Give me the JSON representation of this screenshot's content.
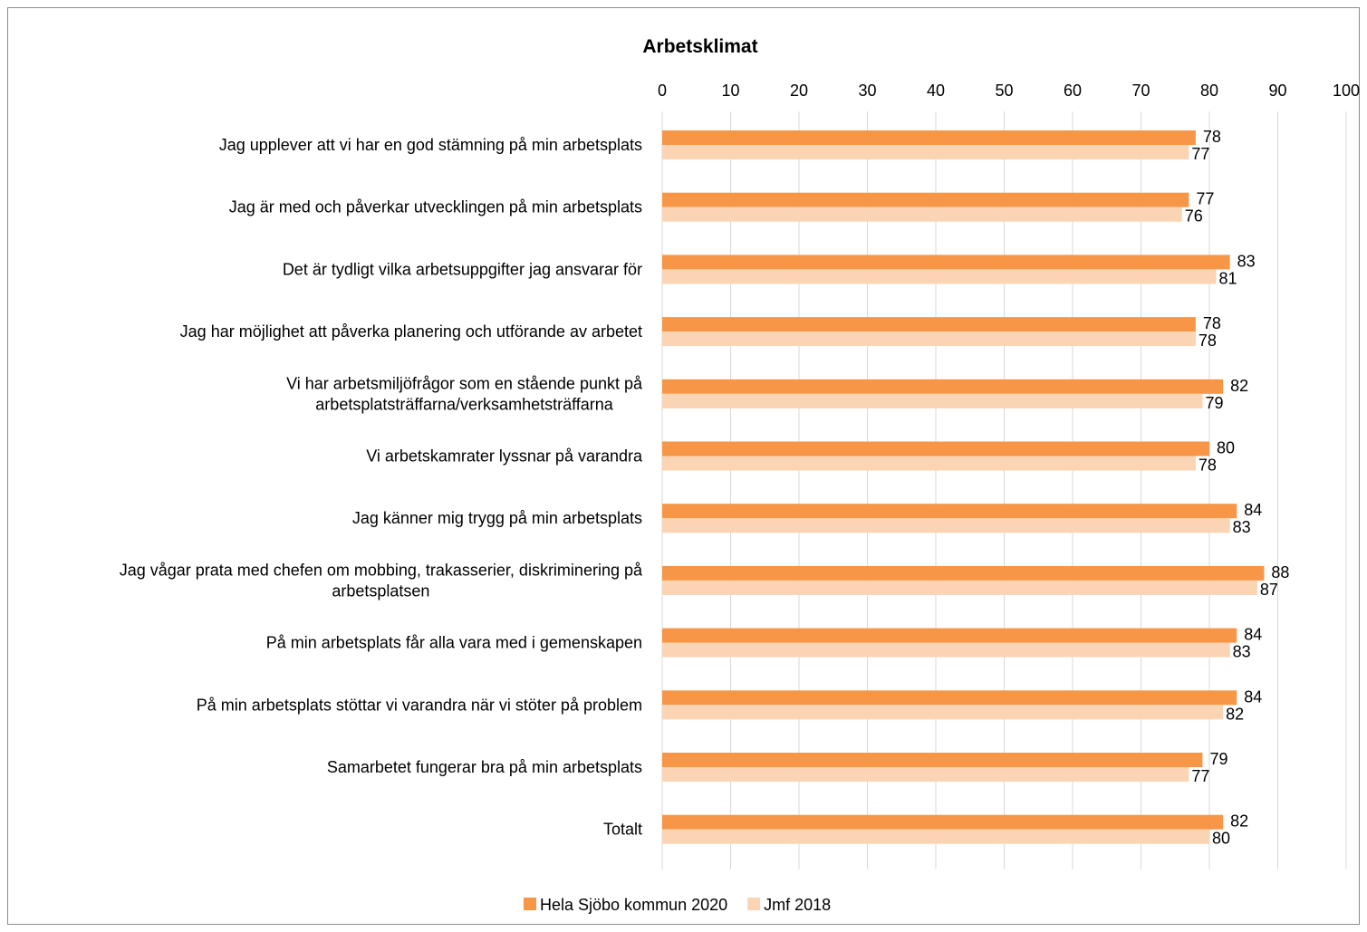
{
  "chart_data": {
    "type": "bar",
    "orientation": "horizontal",
    "title": "Arbetsklimat",
    "xlim": [
      0,
      100
    ],
    "xticks": [
      "0",
      "10",
      "20",
      "30",
      "40",
      "50",
      "60",
      "70",
      "80",
      "90",
      "100"
    ],
    "axis_position": "top",
    "grid": true,
    "legend_position": "bottom",
    "categories": [
      [
        "Jag upplever att vi har en god stämning på min arbetsplats"
      ],
      [
        "Jag är med och påverkar utvecklingen på min arbetsplats"
      ],
      [
        "Det är tydligt vilka arbetsuppgifter jag ansvarar för"
      ],
      [
        "Jag har möjlighet att påverka planering och utförande av arbetet"
      ],
      [
        "Vi har arbetsmiljöfrågor som en stående punkt på",
        "arbetsplatsträffarna/verksamhetsträffarna"
      ],
      [
        "Vi arbetskamrater lyssnar på varandra"
      ],
      [
        "Jag känner mig trygg på min arbetsplats"
      ],
      [
        "Jag vågar prata med chefen om mobbing, trakasserier, diskriminering på",
        "arbetsplatsen"
      ],
      [
        "På min arbetsplats får alla vara med i gemenskapen"
      ],
      [
        "På min arbetsplats stöttar vi varandra när vi stöter på problem"
      ],
      [
        "Samarbetet fungerar bra på min arbetsplats"
      ],
      [
        "Totalt"
      ]
    ],
    "series": [
      {
        "name": "Hela Sjöbo kommun 2020",
        "color": "#F79646",
        "values": [
          78,
          77,
          83,
          78,
          82,
          80,
          84,
          88,
          84,
          84,
          79,
          82
        ]
      },
      {
        "name": "Jmf 2018",
        "color": "#FBD4B4",
        "values": [
          77,
          76,
          81,
          78,
          79,
          78,
          83,
          87,
          83,
          82,
          77,
          80
        ]
      }
    ]
  }
}
